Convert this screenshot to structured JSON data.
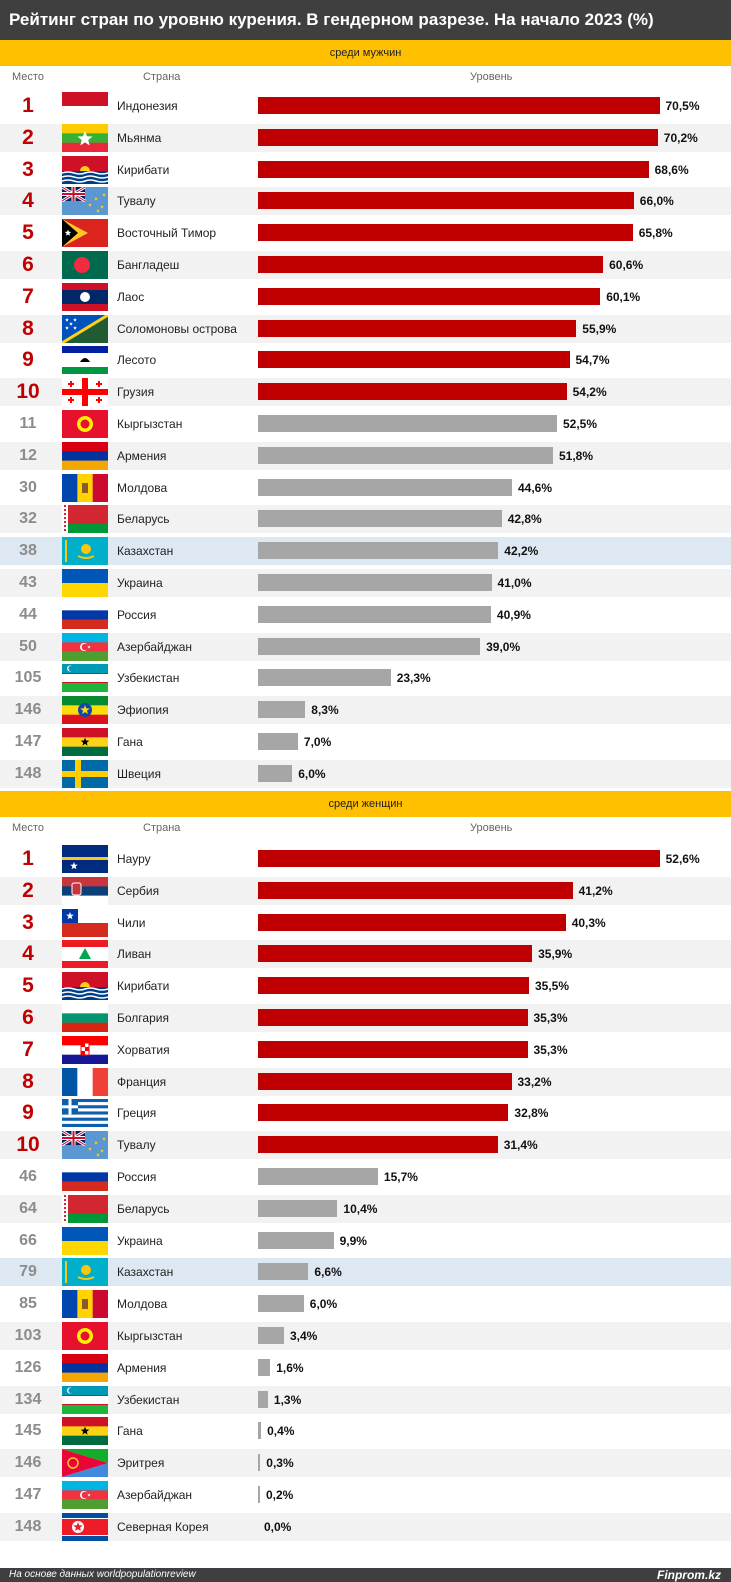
{
  "title": "Рейтинг стран по уровню курения. В гендерном разрезе. На начало 2023 (%)",
  "colors": {
    "top10": "#c00000",
    "rest": "#a6a6a6",
    "highlight": "#dde8f3",
    "section": "#ffc000",
    "header": "#3f3f3f"
  },
  "footer": {
    "source": "На основе данных worldpopulationreview",
    "brand": "Finprom.kz"
  },
  "chart_data": [
    {
      "type": "bar",
      "orientation": "horizontal",
      "section_title": "среди мужчин",
      "columns": {
        "rank": "Место",
        "country": "Страна",
        "level": "Уровень"
      },
      "xlim": [
        0,
        72
      ],
      "rows": [
        {
          "rank": "1",
          "country": "Индонезия",
          "value": 70.5,
          "label": "70,5%",
          "flag": "indonesia"
        },
        {
          "rank": "2",
          "country": "Мьянма",
          "value": 70.2,
          "label": "70,2%",
          "flag": "myanmar"
        },
        {
          "rank": "3",
          "country": "Кирибати",
          "value": 68.6,
          "label": "68,6%",
          "flag": "kiribati"
        },
        {
          "rank": "4",
          "country": "Тувалу",
          "value": 66.0,
          "label": "66,0%",
          "flag": "tuvalu"
        },
        {
          "rank": "5",
          "country": "Восточный Тимор",
          "value": 65.8,
          "label": "65,8%",
          "flag": "timor"
        },
        {
          "rank": "6",
          "country": "Бангладеш",
          "value": 60.6,
          "label": "60,6%",
          "flag": "bangladesh"
        },
        {
          "rank": "7",
          "country": "Лаос",
          "value": 60.1,
          "label": "60,1%",
          "flag": "laos"
        },
        {
          "rank": "8",
          "country": "Соломоновы острова",
          "value": 55.9,
          "label": "55,9%",
          "flag": "solomon"
        },
        {
          "rank": "9",
          "country": "Лесото",
          "value": 54.7,
          "label": "54,7%",
          "flag": "lesotho"
        },
        {
          "rank": "10",
          "country": "Грузия",
          "value": 54.2,
          "label": "54,2%",
          "flag": "georgia"
        },
        {
          "rank": "11",
          "country": "Кыргызстан",
          "value": 52.5,
          "label": "52,5%",
          "flag": "kyrgyzstan"
        },
        {
          "rank": "12",
          "country": "Армения",
          "value": 51.8,
          "label": "51,8%",
          "flag": "armenia"
        },
        {
          "rank": "30",
          "country": "Молдова",
          "value": 44.6,
          "label": "44,6%",
          "flag": "moldova"
        },
        {
          "rank": "32",
          "country": "Беларусь",
          "value": 42.8,
          "label": "42,8%",
          "flag": "belarus"
        },
        {
          "rank": "38",
          "country": "Казахстан",
          "value": 42.2,
          "label": "42,2%",
          "flag": "kazakhstan",
          "highlight": true
        },
        {
          "rank": "43",
          "country": "Украина",
          "value": 41.0,
          "label": "41,0%",
          "flag": "ukraine"
        },
        {
          "rank": "44",
          "country": "Россия",
          "value": 40.9,
          "label": "40,9%",
          "flag": "russia"
        },
        {
          "rank": "50",
          "country": "Азербайджан",
          "value": 39.0,
          "label": "39,0%",
          "flag": "azerbaijan"
        },
        {
          "rank": "105",
          "country": "Узбекистан",
          "value": 23.3,
          "label": "23,3%",
          "flag": "uzbekistan"
        },
        {
          "rank": "146",
          "country": "Эфиопия",
          "value": 8.3,
          "label": "8,3%",
          "flag": "ethiopia"
        },
        {
          "rank": "147",
          "country": "Гана",
          "value": 7.0,
          "label": "7,0%",
          "flag": "ghana"
        },
        {
          "rank": "148",
          "country": "Швеция",
          "value": 6.0,
          "label": "6,0%",
          "flag": "sweden"
        }
      ]
    },
    {
      "type": "bar",
      "orientation": "horizontal",
      "section_title": "среди женщин",
      "columns": {
        "rank": "Место",
        "country": "Страна",
        "level": "Уровень"
      },
      "xlim": [
        0,
        53.7
      ],
      "rows": [
        {
          "rank": "1",
          "country": "Науру",
          "value": 52.6,
          "label": "52,6%",
          "flag": "nauru"
        },
        {
          "rank": "2",
          "country": "Сербия",
          "value": 41.2,
          "label": "41,2%",
          "flag": "serbia"
        },
        {
          "rank": "3",
          "country": "Чили",
          "value": 40.3,
          "label": "40,3%",
          "flag": "chile"
        },
        {
          "rank": "4",
          "country": "Ливан",
          "value": 35.9,
          "label": "35,9%",
          "flag": "lebanon"
        },
        {
          "rank": "5",
          "country": "Кирибати",
          "value": 35.5,
          "label": "35,5%",
          "flag": "kiribati"
        },
        {
          "rank": "6",
          "country": "Болгария",
          "value": 35.3,
          "label": "35,3%",
          "flag": "bulgaria"
        },
        {
          "rank": "7",
          "country": "Хорватия",
          "value": 35.3,
          "label": "35,3%",
          "flag": "croatia"
        },
        {
          "rank": "8",
          "country": "Франция",
          "value": 33.2,
          "label": "33,2%",
          "flag": "france"
        },
        {
          "rank": "9",
          "country": "Греция",
          "value": 32.8,
          "label": "32,8%",
          "flag": "greece"
        },
        {
          "rank": "10",
          "country": "Тувалу",
          "value": 31.4,
          "label": "31,4%",
          "flag": "tuvalu"
        },
        {
          "rank": "46",
          "country": "Россия",
          "value": 15.7,
          "label": "15,7%",
          "flag": "russia"
        },
        {
          "rank": "64",
          "country": "Беларусь",
          "value": 10.4,
          "label": "10,4%",
          "flag": "belarus"
        },
        {
          "rank": "66",
          "country": "Украина",
          "value": 9.9,
          "label": "9,9%",
          "flag": "ukraine"
        },
        {
          "rank": "79",
          "country": "Казахстан",
          "value": 6.6,
          "label": "6,6%",
          "flag": "kazakhstan",
          "highlight": true
        },
        {
          "rank": "85",
          "country": "Молдова",
          "value": 6.0,
          "label": "6,0%",
          "flag": "moldova"
        },
        {
          "rank": "103",
          "country": "Кыргызстан",
          "value": 3.4,
          "label": "3,4%",
          "flag": "kyrgyzstan"
        },
        {
          "rank": "126",
          "country": "Армения",
          "value": 1.6,
          "label": "1,6%",
          "flag": "armenia"
        },
        {
          "rank": "134",
          "country": "Узбекистан",
          "value": 1.3,
          "label": "1,3%",
          "flag": "uzbekistan"
        },
        {
          "rank": "145",
          "country": "Гана",
          "value": 0.4,
          "label": "0,4%",
          "flag": "ghana"
        },
        {
          "rank": "146",
          "country": "Эритрея",
          "value": 0.3,
          "label": "0,3%",
          "flag": "eritrea"
        },
        {
          "rank": "147",
          "country": "Азербайджан",
          "value": 0.2,
          "label": "0,2%",
          "flag": "azerbaijan"
        },
        {
          "rank": "148",
          "country": "Северная Корея",
          "value": 0.0,
          "label": "0,0%",
          "flag": "north-korea"
        }
      ]
    }
  ]
}
